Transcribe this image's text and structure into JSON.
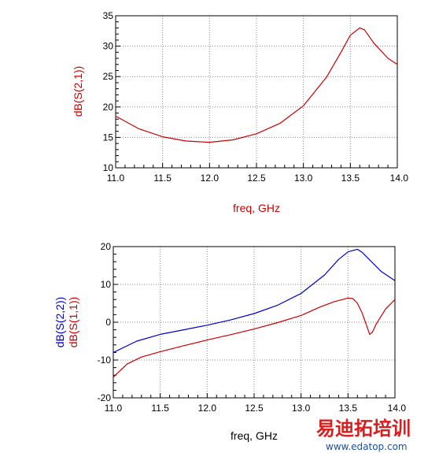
{
  "chart_data": [
    {
      "type": "line",
      "xlabel": "freq, GHz",
      "ylabel": "dB(S(2,1))",
      "xlim": [
        11.0,
        14.0
      ],
      "ylim": [
        10,
        35
      ],
      "x_ticks": [
        "11.0",
        "11.5",
        "12.0",
        "12.5",
        "13.0",
        "13.5",
        "14.0"
      ],
      "y_ticks": [
        "10",
        "15",
        "20",
        "25",
        "30",
        "35"
      ],
      "grid": true,
      "series": [
        {
          "name": "dB(S(2,1))",
          "color": "#cc0000",
          "x": [
            11.0,
            11.25,
            11.5,
            11.75,
            12.0,
            12.25,
            12.5,
            12.75,
            13.0,
            13.25,
            13.4,
            13.5,
            13.6,
            13.65,
            13.75,
            13.9,
            14.0
          ],
          "y": [
            18.5,
            16.4,
            15.1,
            14.4,
            14.2,
            14.6,
            15.6,
            17.3,
            20.2,
            25.0,
            29.0,
            31.8,
            33.0,
            32.7,
            30.5,
            28.0,
            27.0
          ]
        }
      ]
    },
    {
      "type": "line",
      "xlabel": "freq, GHz",
      "ylabel": "dB(S(1,1))",
      "ylabel2": "dB(S(2,2))",
      "xlim": [
        11.0,
        14.0
      ],
      "ylim": [
        -20,
        20
      ],
      "x_ticks": [
        "11.0",
        "11.5",
        "12.0",
        "12.5",
        "13.0",
        "13.5",
        "14.0"
      ],
      "y_ticks": [
        "-20",
        "-10",
        "0",
        "10",
        "20"
      ],
      "grid": true,
      "series": [
        {
          "name": "dB(S(2,2))",
          "color": "#0000cc",
          "x": [
            11.0,
            11.25,
            11.5,
            11.75,
            12.0,
            12.25,
            12.5,
            12.75,
            13.0,
            13.25,
            13.4,
            13.5,
            13.6,
            13.65,
            13.75,
            13.85,
            14.0
          ],
          "y": [
            -8.0,
            -5.0,
            -3.2,
            -2.0,
            -0.8,
            0.6,
            2.3,
            4.5,
            7.6,
            12.5,
            16.6,
            18.6,
            19.3,
            18.5,
            16.0,
            13.5,
            11.0
          ]
        },
        {
          "name": "dB(S(1,1))",
          "color": "#cc0000",
          "x": [
            11.0,
            11.15,
            11.3,
            11.5,
            11.75,
            12.0,
            12.25,
            12.5,
            12.75,
            13.0,
            13.2,
            13.35,
            13.5,
            13.55,
            13.6,
            13.65,
            13.7,
            13.73,
            13.76,
            13.8,
            13.9,
            14.0
          ],
          "y": [
            -14.5,
            -11.0,
            -9.2,
            -7.8,
            -6.2,
            -4.7,
            -3.3,
            -1.8,
            -0.1,
            1.8,
            4.0,
            5.4,
            6.4,
            6.3,
            5.0,
            2.5,
            -1.0,
            -3.2,
            -2.6,
            -0.5,
            3.5,
            6.0
          ]
        }
      ]
    }
  ],
  "watermark": {
    "title": "易迪拓培训",
    "url": "www.edatop.com"
  }
}
